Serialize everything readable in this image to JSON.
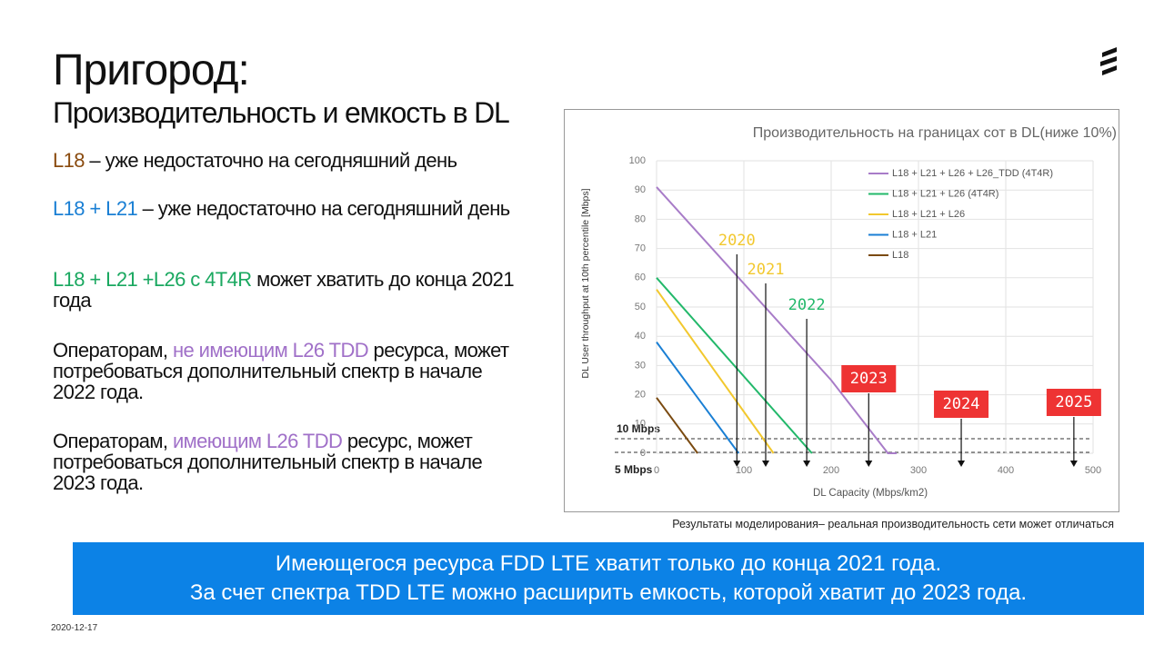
{
  "header": {
    "title": "Пригород:",
    "subtitle": "Производительность и емкость в DL"
  },
  "body": {
    "paragraphs": [
      {
        "segments": [
          {
            "text": "L18",
            "color": "#8a4b0f"
          },
          {
            "text": " – уже недостаточно на сегодняшний день"
          }
        ]
      },
      {
        "segments": [
          {
            "text": "L18 + L21",
            "color": "#1a7fd4"
          },
          {
            "text": " – уже недостаточно на сегодняшний день"
          }
        ]
      },
      {
        "segments": [
          {
            "text": "L18 + L21 +L26 с 4T4R",
            "color": "#1aa860"
          },
          {
            "text": " может хватить до конца 2021 года"
          }
        ]
      },
      {
        "segments": [
          {
            "text": "Операторам, "
          },
          {
            "text": "не имеющим L26 TDD",
            "color": "#a070c8"
          },
          {
            "text": " ресурса, может потребоваться дополнительный спектр в начале 2022 года."
          }
        ]
      },
      {
        "segments": [
          {
            "text": "Операторам, "
          },
          {
            "text": "имеющим L26 TDD",
            "color": "#a070c8"
          },
          {
            "text": " ресурс, может потребоваться дополнительный спектр в начале 2023 года."
          }
        ]
      }
    ]
  },
  "caption": "Результаты моделирования– реальная производительность сети может отличаться",
  "banner": {
    "lines": [
      "Имеющегося ресурса FDD LTE хватит только до конца 2021 года.",
      "За счет спектра TDD LTE можно расширить емкость, которой хватит до 2023 года."
    ]
  },
  "footer": {
    "date": "2020-12-17"
  },
  "chart_data": {
    "type": "line",
    "title": "Производительность на границах сот в DL(ниже 10%)",
    "x_label": "DL Capacity (Mbps/km2)",
    "y_label": "DL User throughput at 10th percentile [Mbps]",
    "xlim": [
      0,
      500
    ],
    "xticks": [
      0,
      100,
      200,
      300,
      400,
      500
    ],
    "ylim": [
      0,
      100
    ],
    "yticks": [
      0,
      10,
      20,
      30,
      40,
      50,
      60,
      70,
      80,
      90,
      100
    ],
    "grid": true,
    "series": [
      {
        "name": "L18 + L21 + L26 + L26_TDD (4T4R)",
        "color": "#a87cc8",
        "x": [
          0,
          200,
          265,
          275
        ],
        "values": [
          91,
          25,
          0,
          0
        ]
      },
      {
        "name": "L18 + L21 + L26 (4T4R)",
        "color": "#22b86a",
        "x": [
          0,
          178
        ],
        "values": [
          60,
          0
        ]
      },
      {
        "name": "L18 + L21 + L26",
        "color": "#f2c82e",
        "x": [
          0,
          134
        ],
        "values": [
          56,
          0
        ]
      },
      {
        "name": "L18 + L21",
        "color": "#1a7fd4",
        "x": [
          0,
          94
        ],
        "values": [
          38,
          0
        ]
      },
      {
        "name": "L18",
        "color": "#7a4a10",
        "x": [
          0,
          47
        ],
        "values": [
          19,
          0
        ]
      }
    ],
    "annotations": [
      {
        "text": "2020",
        "x": 92,
        "color": "#f2c82e"
      },
      {
        "text": "2021",
        "x": 125,
        "color": "#f2c82e"
      },
      {
        "text": "2022",
        "x": 172,
        "color": "#22b86a"
      },
      {
        "text": "2023",
        "x": 243,
        "color": "#ee3333"
      },
      {
        "text": "2024",
        "x": 349,
        "color": "#ee3333"
      },
      {
        "text": "2025",
        "x": 478,
        "color": "#ee3333"
      }
    ],
    "threshold_labels": [
      "10 Mbps",
      "5 Mbps"
    ]
  }
}
